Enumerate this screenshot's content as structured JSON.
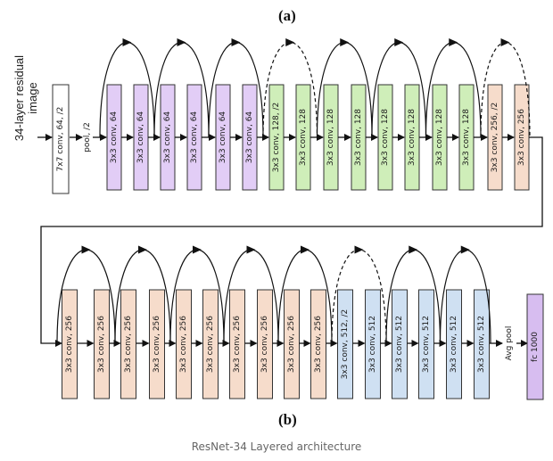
{
  "labels": {
    "panel_a": "(a)",
    "panel_b": "(b)",
    "side": [
      "34-layer residual",
      "image"
    ],
    "caption": "ResNet-34 Layered architecture",
    "pool": "pool, /2",
    "avg_pool": "Avg pool",
    "fc": "fc 1000"
  },
  "colors": {
    "white": "#ffffff",
    "purple": "#e2cdf6",
    "green": "#cfeeb9",
    "peach": "#f6dccb",
    "blue": "#cfe0f2",
    "fc": "#d7bdf0"
  },
  "row1_blocks": [
    {
      "text": "7x7 conv, 64, /2",
      "color": "white"
    },
    {
      "text": "3x3 conv, 64",
      "color": "purple"
    },
    {
      "text": "3x3 conv, 64",
      "color": "purple"
    },
    {
      "text": "3x3 conv, 64",
      "color": "purple"
    },
    {
      "text": "3x3 conv, 64",
      "color": "purple"
    },
    {
      "text": "3x3 conv, 64",
      "color": "purple"
    },
    {
      "text": "3x3 conv, 64",
      "color": "purple"
    },
    {
      "text": "3x3 conv, 128, /2",
      "color": "green"
    },
    {
      "text": "3x3 conv, 128",
      "color": "green"
    },
    {
      "text": "3x3 conv, 128",
      "color": "green"
    },
    {
      "text": "3x3 conv, 128",
      "color": "green"
    },
    {
      "text": "3x3 conv, 128",
      "color": "green"
    },
    {
      "text": "3x3 conv, 128",
      "color": "green"
    },
    {
      "text": "3x3 conv, 128",
      "color": "green"
    },
    {
      "text": "3x3 conv, 128",
      "color": "green"
    },
    {
      "text": "3x3 conv, 256, /2",
      "color": "peach"
    },
    {
      "text": "3x3 conv, 256",
      "color": "peach"
    }
  ],
  "row2_blocks": [
    {
      "text": "3x3 conv, 256",
      "color": "peach"
    },
    {
      "text": "3x3 conv, 256",
      "color": "peach"
    },
    {
      "text": "3x3 conv, 256",
      "color": "peach"
    },
    {
      "text": "3x3 conv, 256",
      "color": "peach"
    },
    {
      "text": "3x3 conv, 256",
      "color": "peach"
    },
    {
      "text": "3x3 conv, 256",
      "color": "peach"
    },
    {
      "text": "3x3 conv, 256",
      "color": "peach"
    },
    {
      "text": "3x3 conv, 256",
      "color": "peach"
    },
    {
      "text": "3x3 conv, 256",
      "color": "peach"
    },
    {
      "text": "3x3 conv, 256",
      "color": "peach"
    },
    {
      "text": "3x3 conv, 512, /2",
      "color": "blue"
    },
    {
      "text": "3x3 conv, 512",
      "color": "blue"
    },
    {
      "text": "3x3 conv, 512",
      "color": "blue"
    },
    {
      "text": "3x3 conv, 512",
      "color": "blue"
    },
    {
      "text": "3x3 conv, 512",
      "color": "blue"
    },
    {
      "text": "3x3 conv, 512",
      "color": "blue"
    }
  ],
  "row1_skips": [
    {
      "from": 1,
      "to": 2,
      "dashed": false
    },
    {
      "from": 3,
      "to": 4,
      "dashed": false
    },
    {
      "from": 5,
      "to": 6,
      "dashed": false
    },
    {
      "from": 7,
      "to": 8,
      "dashed": true
    },
    {
      "from": 9,
      "to": 10,
      "dashed": false
    },
    {
      "from": 11,
      "to": 12,
      "dashed": false
    },
    {
      "from": 13,
      "to": 14,
      "dashed": false
    },
    {
      "from": 15,
      "to": 16,
      "dashed": true
    }
  ],
  "row2_skips": [
    {
      "from": 0,
      "to": 1,
      "dashed": false
    },
    {
      "from": 2,
      "to": 3,
      "dashed": false
    },
    {
      "from": 4,
      "to": 5,
      "dashed": false
    },
    {
      "from": 6,
      "to": 7,
      "dashed": false
    },
    {
      "from": 8,
      "to": 9,
      "dashed": false
    },
    {
      "from": 10,
      "to": 11,
      "dashed": true
    },
    {
      "from": 12,
      "to": 13,
      "dashed": false
    },
    {
      "from": 14,
      "to": 15,
      "dashed": false
    }
  ]
}
